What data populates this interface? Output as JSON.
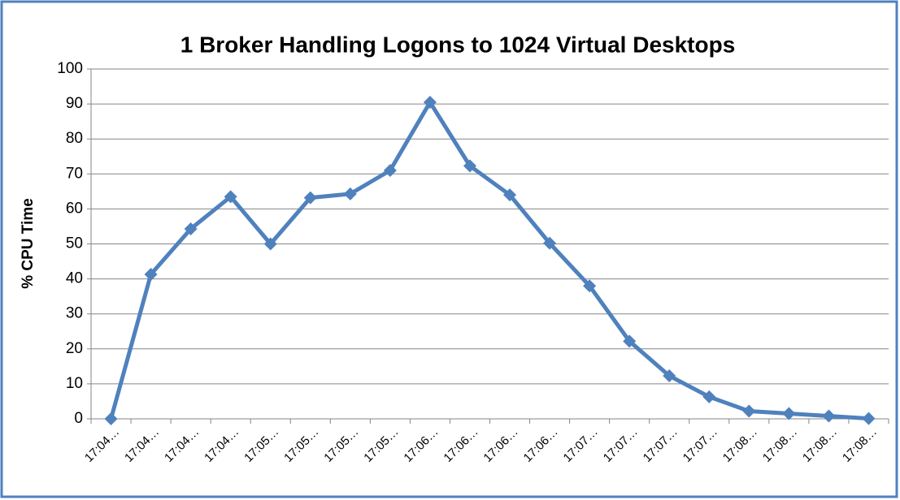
{
  "chart_data": {
    "type": "line",
    "title": "1 Broker Handling Logons to 1024 Virtual Desktops",
    "y_label": "% CPU Time",
    "categories": [
      "17:04…",
      "17:04…",
      "17:04…",
      "17:04…",
      "17:05…",
      "17:05…",
      "17:05…",
      "17:05…",
      "17:06…",
      "17:06…",
      "17:06…",
      "17:06…",
      "17:07…",
      "17:07…",
      "17:07…",
      "17:07…",
      "17:08…",
      "17:08…",
      "17:08…",
      "17:08…"
    ],
    "series": [
      {
        "name": "% CPU Time",
        "color": "#4f81bd",
        "values": [
          0,
          41.3,
          54.3,
          63.5,
          50,
          63.2,
          64.3,
          71,
          90.5,
          72.3,
          64,
          50.2,
          38,
          22.2,
          12.3,
          6.3,
          2.2,
          1.5,
          0.8,
          0.1
        ]
      }
    ],
    "ylim": [
      0,
      100
    ],
    "yticks": [
      0,
      10,
      20,
      30,
      40,
      50,
      60,
      70,
      80,
      90,
      100
    ],
    "grid": true
  }
}
